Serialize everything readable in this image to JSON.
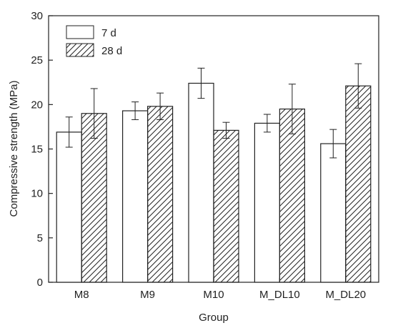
{
  "chart_data": {
    "type": "bar",
    "xlabel": "Group",
    "ylabel": "Compressive strength (MPa)",
    "categories": [
      "M8",
      "M9",
      "M10",
      "M_DL10",
      "M_DL20"
    ],
    "ylim": [
      0,
      30
    ],
    "yticks": [
      0,
      5,
      10,
      15,
      20,
      25,
      30
    ],
    "grid": false,
    "legend_position": "top-left",
    "series": [
      {
        "name": "7 d",
        "fill": "white",
        "values": [
          16.9,
          19.3,
          22.4,
          17.9,
          15.6
        ],
        "error": [
          1.7,
          1.0,
          1.7,
          1.0,
          1.6
        ]
      },
      {
        "name": "28 d",
        "fill": "hatched",
        "values": [
          19.0,
          19.8,
          17.1,
          19.5,
          22.1
        ],
        "error": [
          2.8,
          1.5,
          0.9,
          2.8,
          2.5
        ]
      }
    ]
  }
}
